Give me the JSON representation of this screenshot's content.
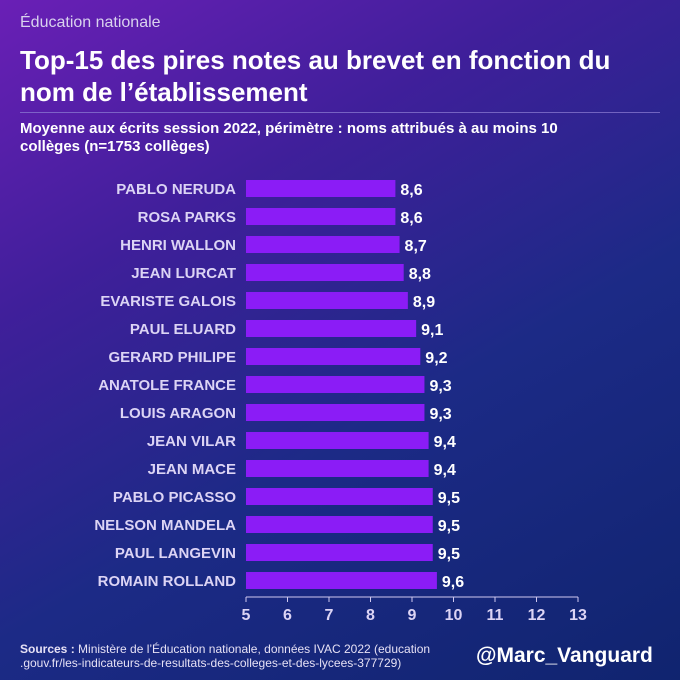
{
  "kicker": "Éducation nationale",
  "title": "Top-15 des pires notes au brevet en fonction du nom de l’établissement",
  "subtitle": "Moyenne aux écrits session 2022, périmètre : noms attribués à au moins 10 collèges (n=1753 collèges)",
  "sources": {
    "label": "Sources :",
    "text": "Ministère de l’Éducation nationale, données IVAC 2022 (education .gouv.fr/les-indicateurs-de-resultats-des-colleges-et-des-lycees-377729)"
  },
  "handle": "@Marc_Vanguard",
  "colors": {
    "bar": "#8b1cf6",
    "text": "#ffffff",
    "axis": "#d0c8f0"
  },
  "chart_data": {
    "type": "bar",
    "orientation": "horizontal",
    "categories": [
      "PABLO NERUDA",
      "ROSA PARKS",
      "HENRI WALLON",
      "JEAN LURCAT",
      "EVARISTE GALOIS",
      "PAUL ELUARD",
      "GERARD PHILIPE",
      "ANATOLE FRANCE",
      "LOUIS ARAGON",
      "JEAN VILAR",
      "JEAN MACE",
      "PABLO PICASSO",
      "NELSON MANDELA",
      "PAUL LANGEVIN",
      "ROMAIN ROLLAND"
    ],
    "values": [
      8.6,
      8.6,
      8.7,
      8.8,
      8.9,
      9.1,
      9.2,
      9.3,
      9.3,
      9.4,
      9.4,
      9.5,
      9.5,
      9.5,
      9.6
    ],
    "value_labels": [
      "8,6",
      "8,6",
      "8,7",
      "8,8",
      "8,9",
      "9,1",
      "9,2",
      "9,3",
      "9,3",
      "9,4",
      "9,4",
      "9,5",
      "9,5",
      "9,5",
      "9,6"
    ],
    "xlim": [
      5,
      13
    ],
    "xticks": [
      "5",
      "6",
      "7",
      "8",
      "9",
      "10",
      "11",
      "12",
      "13"
    ],
    "grid": false,
    "legend": "none"
  }
}
